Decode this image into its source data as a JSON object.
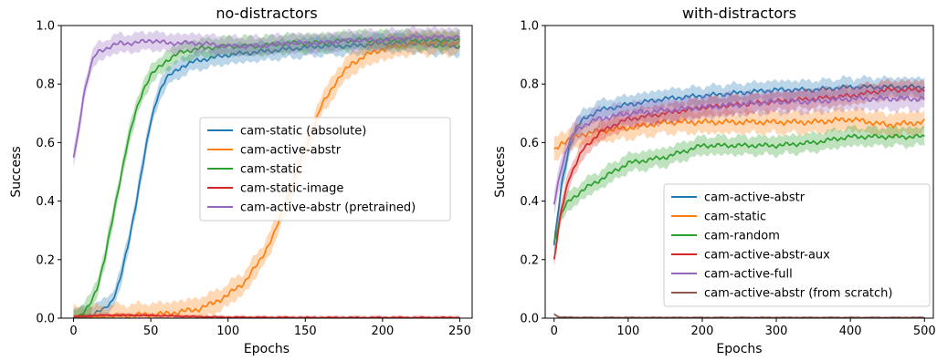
{
  "chart_data": [
    {
      "type": "line",
      "title": "no-distractors",
      "xlabel": "Epochs",
      "ylabel": "Success",
      "xlim": [
        -8,
        258
      ],
      "ylim": [
        0,
        1.0
      ],
      "xticks": [
        0,
        50,
        100,
        150,
        200,
        250
      ],
      "yticks": [
        0.0,
        0.2,
        0.4,
        0.6,
        0.8,
        1.0
      ],
      "ytick_labels": [
        "0.0",
        "0.2",
        "0.4",
        "0.6",
        "0.8",
        "1.0"
      ],
      "legend_loc": "center-right",
      "x_end": 250,
      "series": [
        {
          "name": "cam-static (absolute)",
          "color": "#1f77b4",
          "band": 0.025,
          "x": [
            0,
            10,
            20,
            25,
            30,
            35,
            40,
            45,
            50,
            55,
            60,
            70,
            80,
            90,
            100,
            120,
            140,
            160,
            180,
            200,
            220,
            240,
            250
          ],
          "y": [
            0.0,
            0.01,
            0.03,
            0.06,
            0.13,
            0.24,
            0.38,
            0.53,
            0.67,
            0.77,
            0.82,
            0.86,
            0.88,
            0.89,
            0.9,
            0.91,
            0.92,
            0.93,
            0.93,
            0.94,
            0.94,
            0.93,
            0.93
          ]
        },
        {
          "name": "cam-active-abstr",
          "color": "#ff7f0e",
          "band": 0.03,
          "x": [
            0,
            20,
            40,
            60,
            80,
            90,
            100,
            110,
            120,
            130,
            140,
            150,
            160,
            170,
            180,
            190,
            200,
            210,
            220,
            230,
            240,
            250
          ],
          "y": [
            0.0,
            0.005,
            0.01,
            0.015,
            0.03,
            0.05,
            0.08,
            0.12,
            0.19,
            0.29,
            0.43,
            0.58,
            0.72,
            0.81,
            0.87,
            0.9,
            0.92,
            0.93,
            0.94,
            0.94,
            0.94,
            0.94
          ]
        },
        {
          "name": "cam-static",
          "color": "#2ca02c",
          "band": 0.025,
          "x": [
            0,
            5,
            10,
            15,
            20,
            25,
            30,
            35,
            40,
            45,
            50,
            60,
            70,
            80,
            100,
            120,
            140,
            160,
            180,
            200,
            220,
            240,
            250
          ],
          "y": [
            0.0,
            0.01,
            0.04,
            0.1,
            0.2,
            0.33,
            0.47,
            0.6,
            0.7,
            0.78,
            0.83,
            0.88,
            0.91,
            0.92,
            0.93,
            0.93,
            0.94,
            0.94,
            0.95,
            0.95,
            0.95,
            0.95,
            0.95
          ]
        },
        {
          "name": "cam-static-image",
          "color": "#d62728",
          "band": 0.005,
          "x": [
            0,
            20,
            40,
            60,
            80,
            100,
            150,
            200,
            250
          ],
          "y": [
            0.005,
            0.01,
            0.01,
            0.008,
            0.005,
            0.003,
            0.002,
            0.002,
            0.002
          ]
        },
        {
          "name": "cam-active-abstr (pretrained)",
          "color": "#9467bd",
          "band": 0.025,
          "x": [
            0,
            3,
            6,
            10,
            13,
            16,
            20,
            25,
            30,
            40,
            50,
            60,
            80,
            100,
            120,
            140,
            160,
            180,
            200,
            220,
            240,
            250
          ],
          "y": [
            0.55,
            0.63,
            0.75,
            0.84,
            0.89,
            0.91,
            0.92,
            0.93,
            0.94,
            0.94,
            0.95,
            0.94,
            0.94,
            0.93,
            0.93,
            0.94,
            0.94,
            0.95,
            0.95,
            0.96,
            0.96,
            0.96
          ]
        }
      ]
    },
    {
      "type": "line",
      "title": "with-distractors",
      "xlabel": "Epochs",
      "ylabel": "Success",
      "xlim": [
        -12,
        512
      ],
      "ylim": [
        0,
        1.0
      ],
      "xticks": [
        0,
        100,
        200,
        300,
        400,
        500
      ],
      "yticks": [
        0.0,
        0.2,
        0.4,
        0.6,
        0.8,
        1.0
      ],
      "ytick_labels": [
        "0.0",
        "0.2",
        "0.4",
        "0.6",
        "0.8",
        "1.0"
      ],
      "legend_loc": "lower-right",
      "x_end": 500,
      "series": [
        {
          "name": "cam-active-abstr",
          "color": "#1f77b4",
          "band": 0.025,
          "x": [
            0,
            10,
            20,
            30,
            40,
            60,
            80,
            100,
            150,
            200,
            250,
            300,
            350,
            400,
            450,
            500
          ],
          "y": [
            0.25,
            0.45,
            0.58,
            0.65,
            0.68,
            0.71,
            0.72,
            0.73,
            0.75,
            0.76,
            0.77,
            0.78,
            0.78,
            0.79,
            0.79,
            0.79
          ]
        },
        {
          "name": "cam-static",
          "color": "#ff7f0e",
          "band": 0.03,
          "x": [
            0,
            10,
            20,
            40,
            60,
            100,
            150,
            200,
            250,
            300,
            350,
            400,
            450,
            500
          ],
          "y": [
            0.57,
            0.6,
            0.61,
            0.63,
            0.64,
            0.65,
            0.67,
            0.67,
            0.67,
            0.67,
            0.67,
            0.68,
            0.66,
            0.67
          ]
        },
        {
          "name": "cam-random",
          "color": "#2ca02c",
          "band": 0.025,
          "x": [
            0,
            10,
            20,
            40,
            60,
            80,
            100,
            150,
            200,
            250,
            300,
            350,
            400,
            450,
            500
          ],
          "y": [
            0.26,
            0.36,
            0.4,
            0.44,
            0.47,
            0.5,
            0.53,
            0.55,
            0.59,
            0.59,
            0.59,
            0.6,
            0.62,
            0.62,
            0.62
          ]
        },
        {
          "name": "cam-active-abstr-aux",
          "color": "#d62728",
          "band": 0.025,
          "x": [
            0,
            10,
            20,
            40,
            60,
            80,
            100,
            150,
            200,
            250,
            300,
            350,
            400,
            450,
            500
          ],
          "y": [
            0.2,
            0.37,
            0.48,
            0.58,
            0.63,
            0.66,
            0.68,
            0.7,
            0.72,
            0.73,
            0.74,
            0.75,
            0.76,
            0.78,
            0.78
          ]
        },
        {
          "name": "cam-active-full",
          "color": "#9467bd",
          "band": 0.03,
          "x": [
            0,
            10,
            20,
            30,
            40,
            60,
            80,
            100,
            150,
            200,
            250,
            300,
            350,
            400,
            450,
            500
          ],
          "y": [
            0.39,
            0.52,
            0.6,
            0.64,
            0.66,
            0.68,
            0.69,
            0.7,
            0.71,
            0.72,
            0.73,
            0.74,
            0.74,
            0.75,
            0.75,
            0.75
          ]
        },
        {
          "name": "cam-active-abstr (from scratch)",
          "color": "#8c564b",
          "band": 0.003,
          "x": [
            0,
            5,
            10,
            50,
            100,
            200,
            300,
            400,
            500
          ],
          "y": [
            0.015,
            0.005,
            0.003,
            0.002,
            0.002,
            0.002,
            0.002,
            0.002,
            0.002
          ]
        }
      ]
    }
  ]
}
